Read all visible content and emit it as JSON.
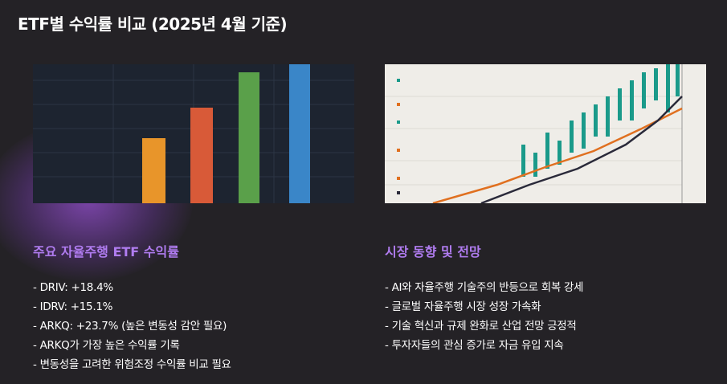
{
  "header": {
    "title": "ETF별 수익률 비교 (2025년 4월 기준)"
  },
  "sections": [
    {
      "heading": "주요 자율주행 ETF 수익률",
      "items": [
        "- DRIV: +18.4%",
        "- IDRV: +15.1%",
        "- ARKQ: +23.7% (높은 변동성 감안 필요)",
        "- ARKQ가 가장 높은 수익률 기록",
        "- 변동성을 고려한 위험조정 수익률 비교 필요"
      ]
    },
    {
      "heading": "시장 동향 및 전망",
      "items": [
        "- AI와 자율주행 기술주의 반등으로 회복 강세",
        "- 글로벌 자율주행 시장 성장 가속화",
        "- 기술 혁신과 규제 완화로 산업 전망 긍정적",
        "- 투자자들의 관심 증가로 자금 유입 지속"
      ]
    }
  ]
}
